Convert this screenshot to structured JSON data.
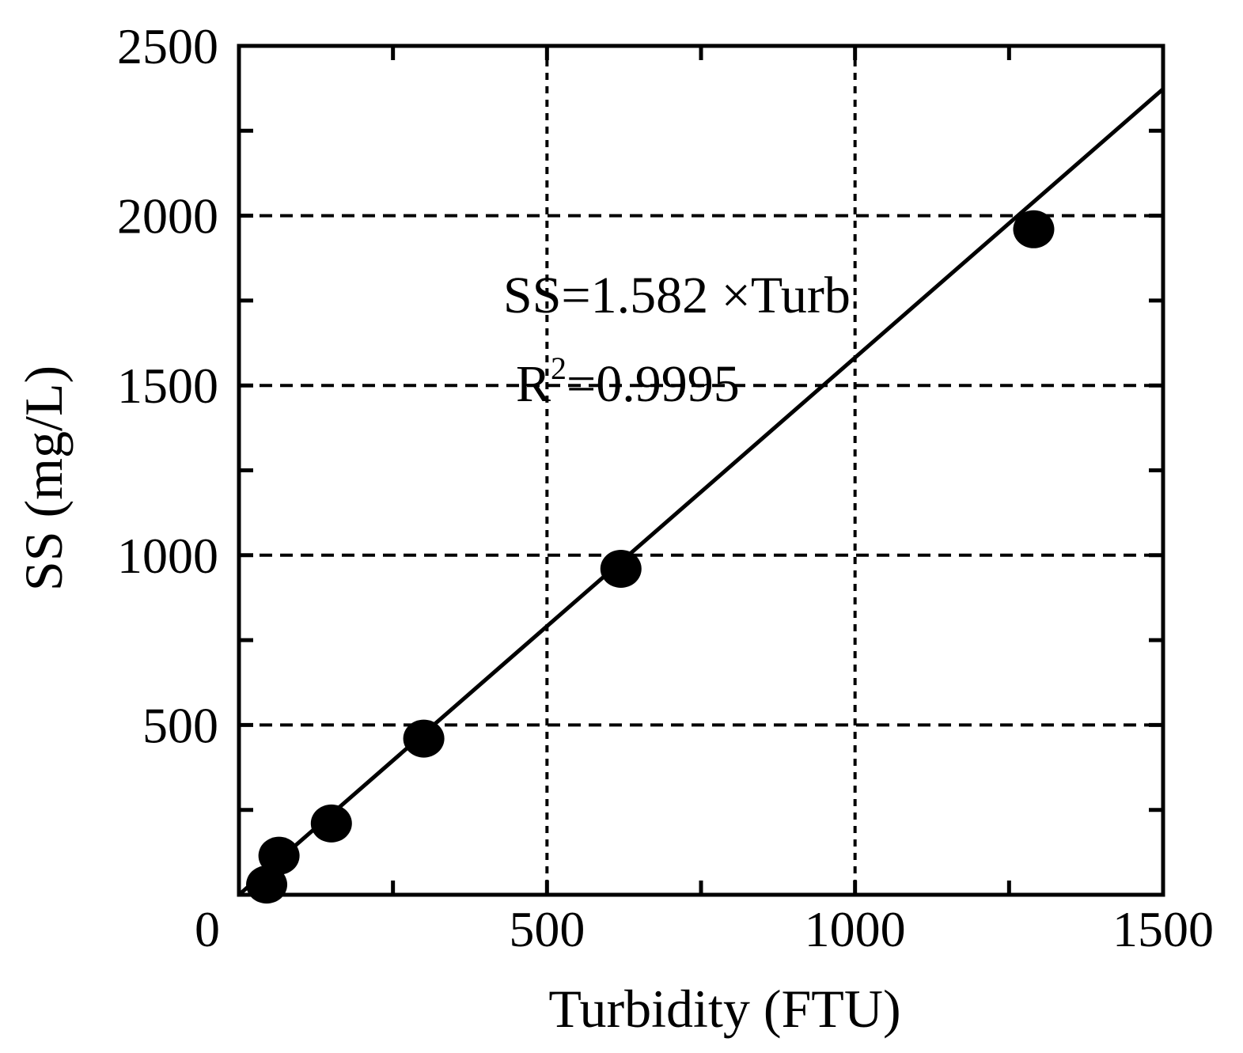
{
  "chart_data": {
    "type": "scatter",
    "xlabel": "Turbidity (FTU)",
    "ylabel": "SS (mg/L)",
    "xlim": [
      0,
      1500
    ],
    "ylim": [
      0,
      2500
    ],
    "x_ticks": [
      0,
      500,
      1000,
      1500
    ],
    "y_ticks": [
      500,
      1000,
      1500,
      2000,
      2500
    ],
    "x_tick_labels": [
      "0",
      "500",
      "1000",
      "1500"
    ],
    "y_tick_labels": [
      "500",
      "1000",
      "1500",
      "2000",
      "2500"
    ],
    "x_minor_ticks": [
      250,
      750,
      1250
    ],
    "y_minor_ticks": [
      250,
      750,
      1250,
      1750,
      2250
    ],
    "grid": true,
    "grid_style": "dotted",
    "points": [
      {
        "x": 45,
        "y": 30
      },
      {
        "x": 65,
        "y": 115
      },
      {
        "x": 150,
        "y": 210
      },
      {
        "x": 300,
        "y": 460
      },
      {
        "x": 620,
        "y": 960
      },
      {
        "x": 1290,
        "y": 1960
      }
    ],
    "fit_line": {
      "slope": 1.582,
      "intercept": 0,
      "x_range": [
        0,
        1500
      ]
    },
    "annotations": {
      "equation": "SS=1.582 ×Turb",
      "r2_base": "R",
      "r2_sup": "2",
      "r2_value": "=0.9995"
    },
    "colors": {
      "marker": "#000000",
      "line": "#000000",
      "grid": "#000000"
    }
  }
}
